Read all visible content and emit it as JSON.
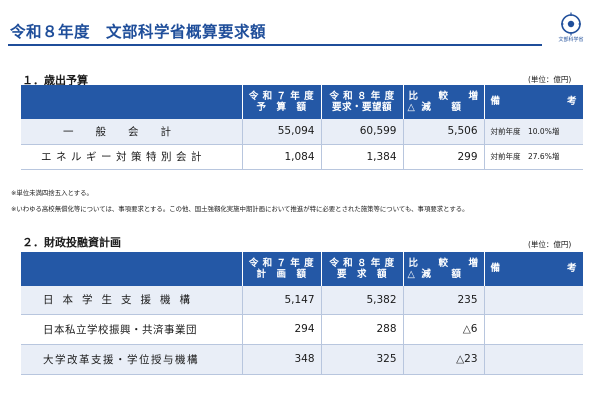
{
  "page": {
    "title": "令和８年度　文部科学省概算要求額",
    "logo_caption": "文部科学省"
  },
  "section1": {
    "heading": "１．歳出予算",
    "unit": "(単位：億円)",
    "headers": {
      "prev": [
        "令 和 ７ 年 度",
        "予　算　額"
      ],
      "req": [
        "令 和 ８ 年 度",
        "要求・要望額"
      ],
      "diff": [
        "比　　較　　増",
        "減　　額"
      ],
      "diff_marks": [
        "",
        "△"
      ],
      "note": [
        "備",
        "考"
      ]
    },
    "rows": [
      {
        "name": "一般会計",
        "prev": "55,094",
        "req": "60,599",
        "diff": "5,506",
        "note": "対前年度　10.0%増"
      },
      {
        "name": "エネルギー対策特別会計",
        "prev": "1,084",
        "req": "1,384",
        "diff": "299",
        "note": "対前年度　27.6%増"
      }
    ],
    "footnotes": [
      "※単位未満四捨五入とする。",
      "※いわゆる高校無償化等については、事項要求とする。この他、国土強靱化実施中期計画において推進が特に必要とされた施策等についても、事項要求とする。"
    ]
  },
  "section2": {
    "heading": "２．財政投融資計画",
    "unit": "(単位：億円)",
    "headers": {
      "prev": [
        "令 和 ７ 年 度",
        "計　画　額"
      ],
      "req": [
        "令 和 ８ 年 度",
        "要　求　額"
      ],
      "diff": [
        "比　　較　　増",
        "減　　額"
      ],
      "diff_marks": [
        "",
        "△"
      ],
      "note": [
        "備",
        "考"
      ]
    },
    "rows": [
      {
        "name": "日本学生支援機構",
        "prev": "5,147",
        "req": "5,382",
        "diff": "235",
        "note": ""
      },
      {
        "name": "日本私立学校振興・共済事業団",
        "prev": "294",
        "req": "288",
        "diff": "△6",
        "note": ""
      },
      {
        "name": "大学改革支援・学位授与機構",
        "prev": "348",
        "req": "325",
        "diff": "△23",
        "note": ""
      }
    ]
  }
}
